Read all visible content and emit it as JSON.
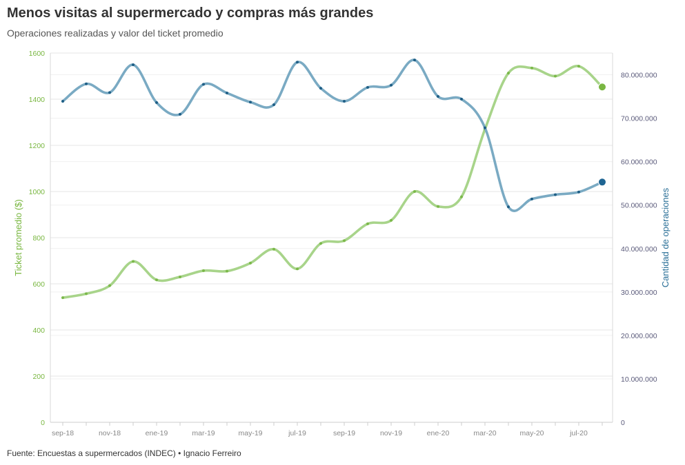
{
  "title": "Menos visitas al supermercado y compras más grandes",
  "subtitle": "Operaciones realizadas y valor del ticket promedio",
  "footer": "Fuente: Encuestas a supermercados (INDEC) • Ignacio Ferreiro",
  "chart_data": {
    "type": "line",
    "title": "Menos visitas al supermercado y compras más grandes",
    "subtitle": "Operaciones realizadas y valor del ticket promedio",
    "x": [
      "sep-18",
      "oct-18",
      "nov-18",
      "dic-18",
      "ene-19",
      "feb-19",
      "mar-19",
      "abr-19",
      "may-19",
      "jun-19",
      "jul-19",
      "ago-19",
      "sep-19",
      "oct-19",
      "nov-19",
      "dic-19",
      "ene-20",
      "feb-20",
      "mar-20",
      "abr-20",
      "may-20",
      "jun-20",
      "jul-20",
      "ago-20"
    ],
    "x_tick_labels": [
      "sep-18",
      "nov-18",
      "ene-19",
      "mar-19",
      "may-19",
      "jul-19",
      "sep-19",
      "nov-19",
      "ene-20",
      "mar-20",
      "may-20",
      "jul-20"
    ],
    "y_left": {
      "label": "Ticket promedio ($)",
      "ylim": [
        0,
        1600
      ],
      "ticks": [
        "0",
        "200",
        "400",
        "600",
        "800",
        "1000",
        "1200",
        "1400",
        "1600"
      ],
      "tick_values": [
        0,
        200,
        400,
        600,
        800,
        1000,
        1200,
        1400,
        1600
      ]
    },
    "y_right": {
      "label": "Cantidad de operaciones",
      "ylim": [
        0,
        85000000
      ],
      "ticks": [
        "0",
        "10.000.000",
        "20.000.000",
        "30.000.000",
        "40.000.000",
        "50.000.000",
        "60.000.000",
        "70.000.000",
        "80.000.000"
      ],
      "tick_values": [
        0,
        10000000,
        20000000,
        30000000,
        40000000,
        50000000,
        60000000,
        70000000,
        80000000
      ]
    },
    "series": [
      {
        "axis": "left",
        "color": "#8cc63f",
        "values": [
          540,
          557,
          592,
          697,
          617,
          630,
          657,
          655,
          690,
          750,
          665,
          775,
          787,
          860,
          875,
          1000,
          935,
          977,
          1270,
          1513,
          1535,
          1500,
          1543,
          1453
        ]
      },
      {
        "axis": "right",
        "color": "#2a6f97",
        "values": [
          73900000,
          77900000,
          75900000,
          82300000,
          73600000,
          70900000,
          77800000,
          75800000,
          73700000,
          73100000,
          82900000,
          76900000,
          73900000,
          77100000,
          77600000,
          83400000,
          75000000,
          74400000,
          67800000,
          49600000,
          51400000,
          52400000,
          53000000,
          55300000
        ]
      }
    ],
    "grid": true,
    "legend": "none"
  }
}
